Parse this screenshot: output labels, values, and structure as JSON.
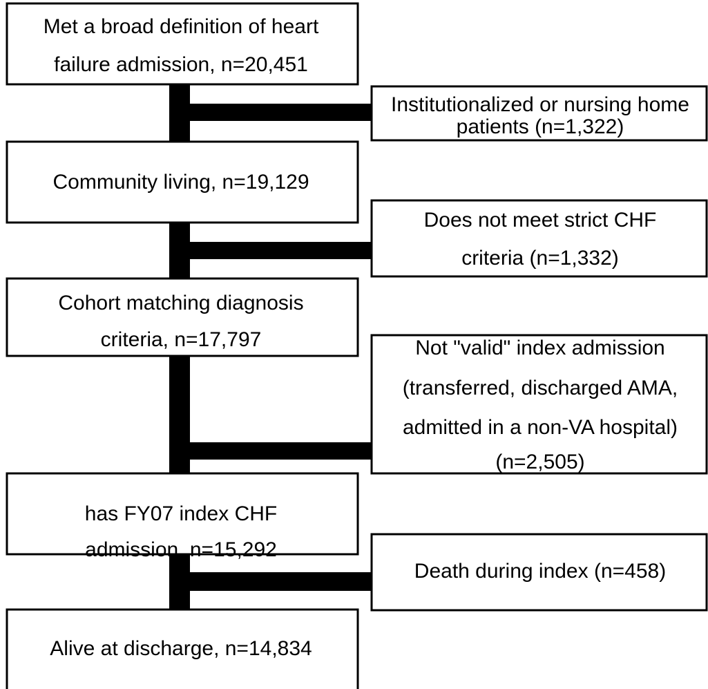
{
  "nodes": [
    {
      "lines": [
        "Met a broad definition of heart",
        "failure admission, n=20,451"
      ]
    },
    {
      "lines": [
        "Institutionalized or nursing home",
        "patients (n=1,322)"
      ]
    },
    {
      "lines": [
        "Community living, n=19,129"
      ]
    },
    {
      "lines": [
        "Does not meet strict CHF",
        "criteria (n=1,332)"
      ]
    },
    {
      "lines": [
        "Cohort matching diagnosis",
        "criteria, n=17,797"
      ]
    },
    {
      "lines": [
        "Not \"valid\" index admission",
        "(transferred, discharged AMA,",
        "admitted in a non-VA hospital)",
        "(n=2,505)"
      ]
    },
    {
      "lines": [
        "has FY07 index CHF",
        "admission, n=15,292"
      ]
    },
    {
      "lines": [
        "Death during index (n=458)"
      ]
    },
    {
      "lines": [
        "Alive at discharge, n=14,834"
      ]
    }
  ]
}
